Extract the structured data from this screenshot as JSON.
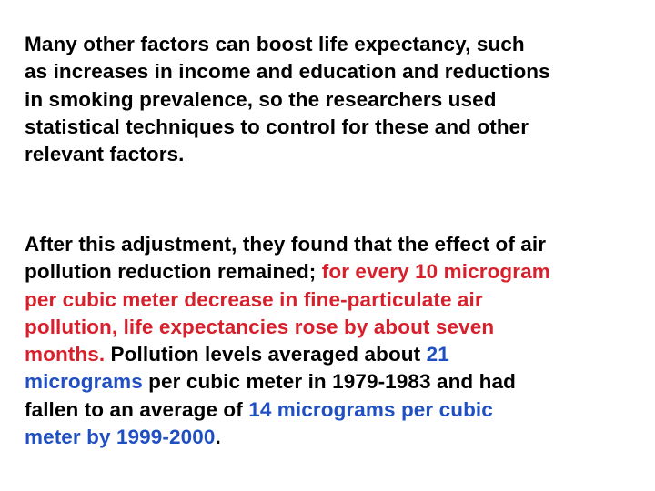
{
  "colors": {
    "text": "#000000",
    "highlight_red": "#d8202c",
    "highlight_blue": "#1f4fc0",
    "background": "#ffffff"
  },
  "paragraph_1": {
    "line_1": "Many other factors can boost life expectancy, such",
    "line_2": "as increases in income and education and reductions",
    "line_3": "in smoking prevalence, so the researchers used",
    "line_4": "statistical techniques to control for these and other",
    "line_5": "relevant factors."
  },
  "paragraph_2": {
    "l1": "After this adjustment, they found that the effect of air",
    "l2_black": "pollution reduction remained; ",
    "l2_red": "for every 10 microgram",
    "l3_red": "per cubic meter decrease in fine-particulate air",
    "l4_red": "pollution, life expectancies rose by about seven",
    "l5_red": "months.",
    "l5_black": " Pollution levels averaged about ",
    "l5_blue": "21",
    "l6_blue": "micrograms",
    "l6_black": " per cubic meter in 1979-1983 and had",
    "l7_black": "fallen to an average of ",
    "l7_blue": "14 micrograms per cubic",
    "l8_blue": "meter by 1999-2000",
    "l8_black": "."
  }
}
